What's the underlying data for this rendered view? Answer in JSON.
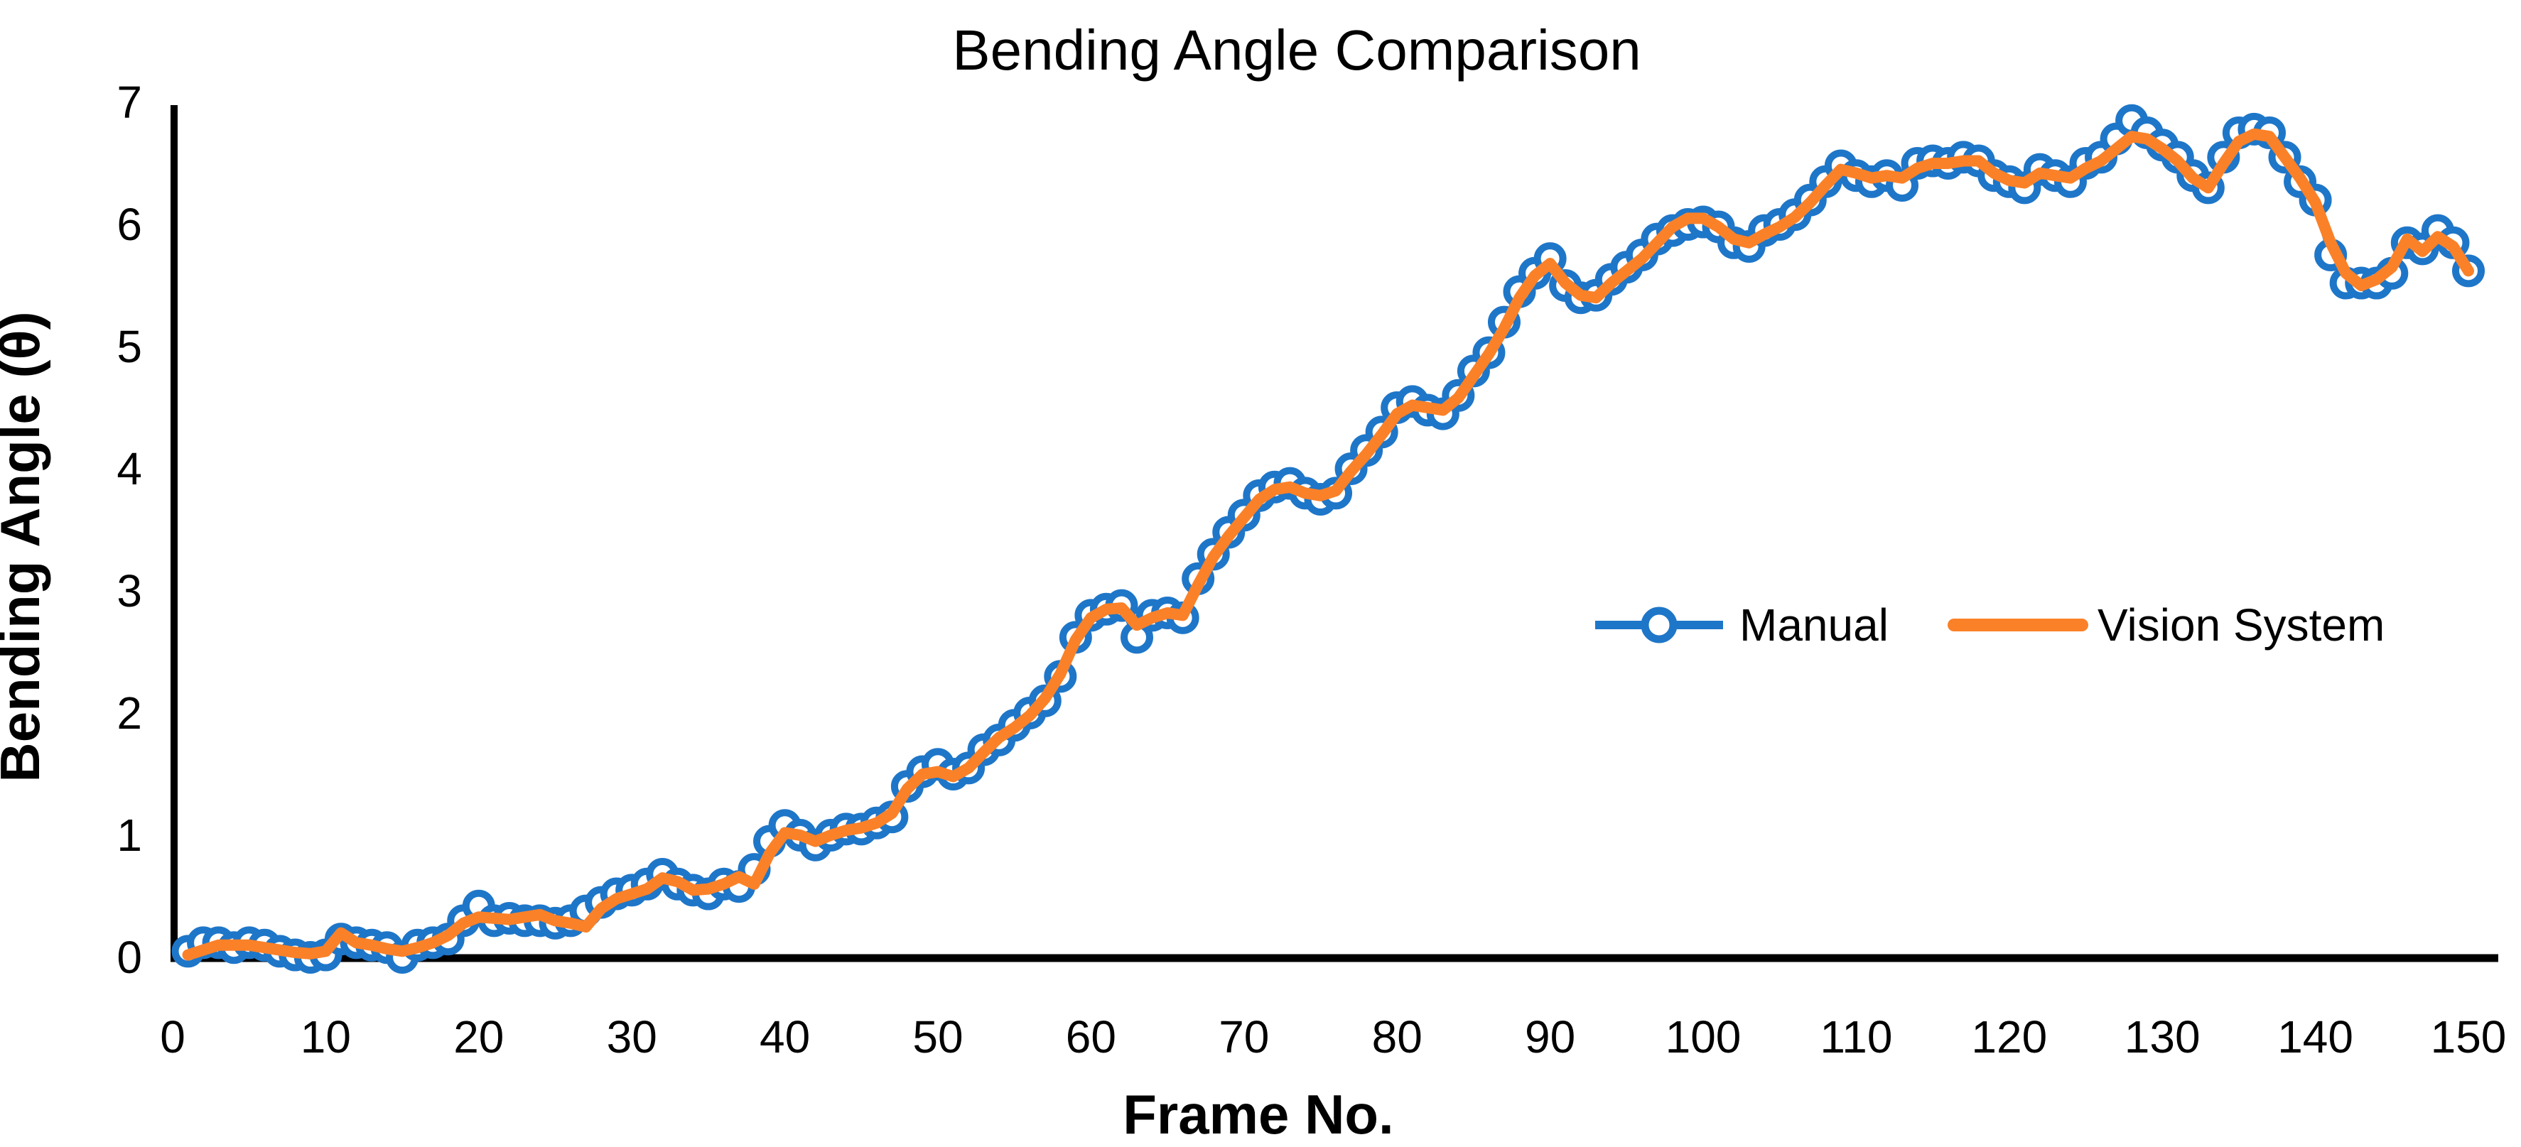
{
  "page": {
    "background": "#ffffff"
  },
  "chart_data": {
    "type": "line",
    "title": "Bending Angle Comparison",
    "xlabel": "Frame No.",
    "ylabel": "Bending Angle (θ)",
    "xlim": [
      0,
      150
    ],
    "ylim": [
      0,
      7
    ],
    "x_ticks": [
      0,
      10,
      20,
      30,
      40,
      50,
      60,
      70,
      80,
      90,
      100,
      110,
      120,
      130,
      140,
      150
    ],
    "y_ticks": [
      0,
      1,
      2,
      3,
      4,
      5,
      6,
      7
    ],
    "grid": false,
    "legend_position": "center-right-horizontal",
    "x_start": 1,
    "axis_color": "#000000",
    "series": [
      {
        "name": "Manual",
        "color": "#1E76C8",
        "marker": "open-circle",
        "values": [
          0.05,
          0.12,
          0.12,
          0.08,
          0.12,
          0.1,
          0.05,
          0.02,
          0.0,
          0.02,
          0.15,
          0.12,
          0.1,
          0.08,
          0.0,
          0.1,
          0.12,
          0.15,
          0.3,
          0.42,
          0.3,
          0.32,
          0.3,
          0.3,
          0.28,
          0.3,
          0.38,
          0.45,
          0.52,
          0.55,
          0.6,
          0.68,
          0.6,
          0.55,
          0.52,
          0.6,
          0.58,
          0.72,
          0.95,
          1.08,
          1.0,
          0.92,
          1.0,
          1.05,
          1.05,
          1.1,
          1.15,
          1.4,
          1.52,
          1.58,
          1.5,
          1.55,
          1.7,
          1.78,
          1.9,
          2.0,
          2.1,
          2.3,
          2.62,
          2.8,
          2.85,
          2.88,
          2.62,
          2.8,
          2.82,
          2.78,
          3.1,
          3.3,
          3.48,
          3.62,
          3.78,
          3.85,
          3.88,
          3.8,
          3.75,
          3.8,
          4.0,
          4.15,
          4.3,
          4.5,
          4.55,
          4.48,
          4.45,
          4.6,
          4.8,
          4.95,
          5.2,
          5.45,
          5.6,
          5.72,
          5.5,
          5.4,
          5.42,
          5.55,
          5.65,
          5.75,
          5.88,
          5.95,
          6.0,
          6.02,
          5.98,
          5.85,
          5.82,
          5.95,
          6.0,
          6.08,
          6.2,
          6.35,
          6.48,
          6.4,
          6.35,
          6.4,
          6.32,
          6.5,
          6.52,
          6.5,
          6.55,
          6.52,
          6.4,
          6.35,
          6.3,
          6.45,
          6.4,
          6.35,
          6.5,
          6.55,
          6.7,
          6.85,
          6.75,
          6.65,
          6.55,
          6.4,
          6.3,
          6.55,
          6.75,
          6.78,
          6.75,
          6.55,
          6.35,
          6.2,
          5.75,
          5.52,
          5.52,
          5.52,
          5.6,
          5.85,
          5.8,
          5.95,
          5.85,
          5.62
        ]
      },
      {
        "name": "Vision System",
        "color": "#FA8128",
        "marker": "none",
        "values": [
          0.02,
          0.06,
          0.1,
          0.1,
          0.1,
          0.08,
          0.06,
          0.04,
          0.03,
          0.05,
          0.2,
          0.12,
          0.1,
          0.07,
          0.05,
          0.08,
          0.12,
          0.18,
          0.28,
          0.33,
          0.32,
          0.31,
          0.33,
          0.35,
          0.3,
          0.28,
          0.25,
          0.4,
          0.48,
          0.52,
          0.56,
          0.65,
          0.62,
          0.55,
          0.56,
          0.6,
          0.66,
          0.6,
          0.85,
          1.02,
          1.0,
          0.95,
          1.0,
          1.04,
          1.06,
          1.1,
          1.18,
          1.38,
          1.5,
          1.52,
          1.48,
          1.55,
          1.68,
          1.8,
          1.88,
          1.98,
          2.12,
          2.32,
          2.6,
          2.78,
          2.85,
          2.86,
          2.72,
          2.78,
          2.82,
          2.8,
          3.05,
          3.28,
          3.45,
          3.6,
          3.75,
          3.83,
          3.85,
          3.8,
          3.78,
          3.82,
          3.98,
          4.12,
          4.28,
          4.45,
          4.52,
          4.5,
          4.48,
          4.58,
          4.76,
          4.94,
          5.15,
          5.4,
          5.58,
          5.68,
          5.52,
          5.42,
          5.4,
          5.52,
          5.62,
          5.72,
          5.85,
          5.98,
          6.05,
          6.05,
          5.98,
          5.88,
          5.85,
          5.92,
          5.98,
          6.06,
          6.18,
          6.32,
          6.45,
          6.42,
          6.38,
          6.4,
          6.38,
          6.46,
          6.5,
          6.5,
          6.52,
          6.52,
          6.42,
          6.36,
          6.34,
          6.42,
          6.4,
          6.38,
          6.46,
          6.52,
          6.62,
          6.72,
          6.7,
          6.62,
          6.52,
          6.38,
          6.3,
          6.5,
          6.68,
          6.74,
          6.72,
          6.55,
          6.38,
          6.18,
          5.85,
          5.6,
          5.5,
          5.55,
          5.65,
          5.88,
          5.78,
          5.9,
          5.82,
          5.62
        ]
      }
    ]
  }
}
